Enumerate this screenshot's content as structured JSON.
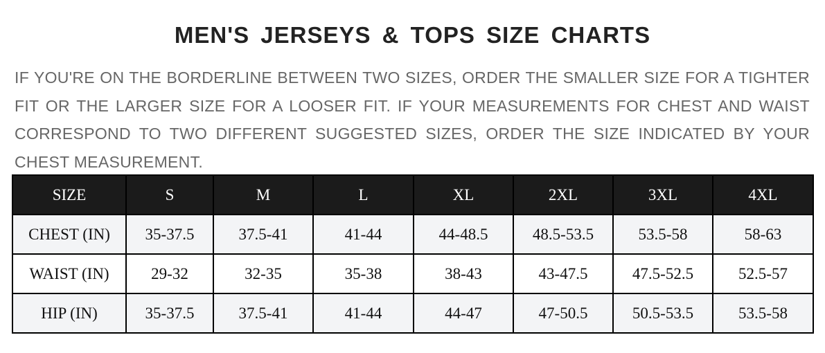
{
  "title": "MEN'S JERSEYS & TOPS SIZE CHARTS",
  "note": "IF YOU'RE ON THE BORDERLINE BETWEEN TWO SIZES, ORDER THE SMALLER SIZE FOR A TIGHTER FIT OR THE LARGER SIZE FOR A LOOSER FIT. IF YOUR MEASUREMENTS FOR CHEST AND WAIST CORRESPOND TO TWO DIFFERENT SUGGESTED SIZES, ORDER THE SIZE INDICATED BY YOUR CHEST MEASUREMENT.",
  "table": {
    "headers": [
      "SIZE",
      "S",
      "M",
      "L",
      "XL",
      "2XL",
      "3XL",
      "4XL"
    ],
    "rows": [
      [
        "CHEST (IN)",
        "35-37.5",
        "37.5-41",
        "41-44",
        "44-48.5",
        "48.5-53.5",
        "53.5-58",
        "58-63"
      ],
      [
        "WAIST (IN)",
        "29-32",
        "32-35",
        "35-38",
        "38-43",
        "43-47.5",
        "47.5-52.5",
        "52.5-57"
      ],
      [
        "HIP (IN)",
        "35-37.5",
        "37.5-41",
        "41-44",
        "44-47",
        "47-50.5",
        "50.5-53.5",
        "53.5-58"
      ]
    ]
  },
  "colors": {
    "header_bg": "#1b1b1b",
    "row_alt": "#f3f4f6",
    "note_text": "#666666"
  }
}
